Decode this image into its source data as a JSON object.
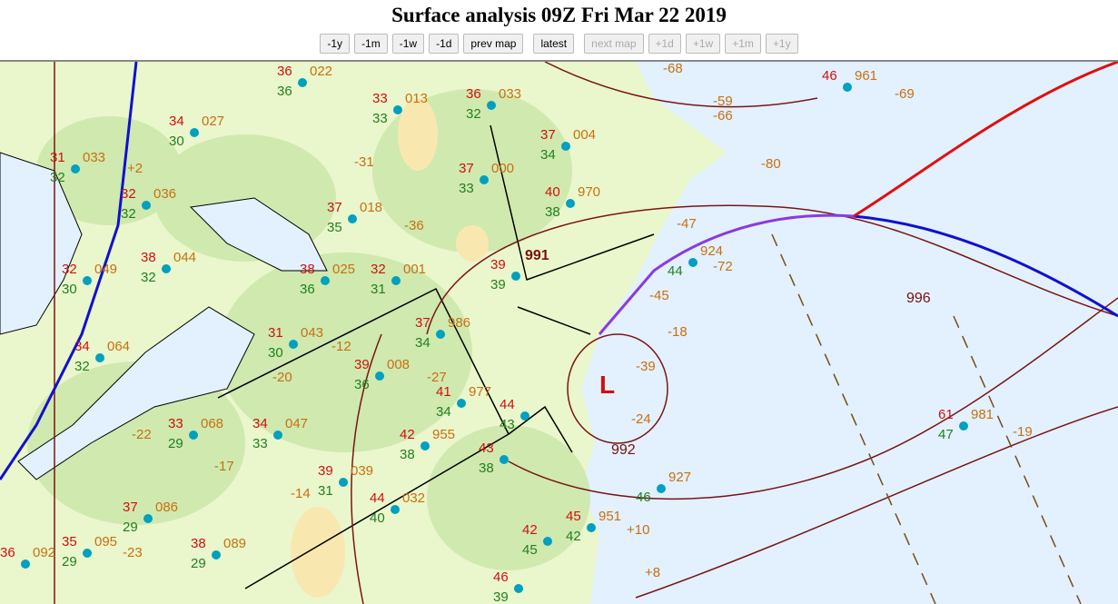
{
  "header": {
    "title": "Surface analysis 09Z Fri Mar 22 2019"
  },
  "nav": {
    "buttons": [
      {
        "label": "-1y",
        "enabled": true
      },
      {
        "label": "-1m",
        "enabled": true
      },
      {
        "label": "-1w",
        "enabled": true
      },
      {
        "label": "-1d",
        "enabled": true
      },
      {
        "label": "prev map",
        "enabled": true
      },
      {
        "label": "latest",
        "enabled": true
      },
      {
        "label": "next map",
        "enabled": false
      },
      {
        "label": "+1d",
        "enabled": false
      },
      {
        "label": "+1w",
        "enabled": false
      },
      {
        "label": "+1m",
        "enabled": false
      },
      {
        "label": "+1y",
        "enabled": false
      }
    ]
  },
  "map": {
    "colors": {
      "ocean": "#e2f1fd",
      "land": "#eaf6cc",
      "land_moist": "#c9e6a8",
      "dry": "#f8e8b0",
      "cold_front": "#1010d0",
      "warm_front": "#e01010",
      "occluded_front": "#8a3ae0",
      "isobar": "#7a1414"
    },
    "low": {
      "symbol": "L",
      "pressure": "992"
    },
    "isobar_labels": [
      "996",
      "992",
      "991"
    ],
    "stations": [
      {
        "temp": "46",
        "pres": "961",
        "dew": ""
      },
      {
        "temp": "61",
        "pres": "981",
        "dew": "47"
      },
      {
        "temp": "33",
        "pres": "013",
        "dew": "33"
      },
      {
        "temp": "36",
        "pres": "022",
        "dew": "36"
      },
      {
        "temp": "34",
        "pres": "027",
        "dew": "30"
      },
      {
        "temp": "36",
        "pres": "033",
        "dew": "32"
      },
      {
        "temp": "37",
        "pres": "004",
        "dew": "34"
      },
      {
        "temp": "37",
        "pres": "000",
        "dew": "33"
      },
      {
        "temp": "31",
        "pres": "033",
        "dew": "32"
      },
      {
        "temp": "32",
        "pres": "036",
        "dew": "32"
      },
      {
        "temp": "37",
        "pres": "018",
        "dew": "35"
      },
      {
        "temp": "32",
        "pres": "001",
        "dew": "31"
      },
      {
        "temp": "38",
        "pres": "044",
        "dew": "32"
      },
      {
        "temp": "32",
        "pres": "049",
        "dew": "30"
      },
      {
        "temp": "38",
        "pres": "025",
        "dew": "36"
      },
      {
        "temp": "37",
        "pres": "986",
        "dew": "34"
      },
      {
        "temp": "31",
        "pres": "043",
        "dew": "30"
      },
      {
        "temp": "39",
        "pres": "008",
        "dew": "36"
      },
      {
        "temp": "34",
        "pres": "064",
        "dew": "32"
      },
      {
        "temp": "33",
        "pres": "068",
        "dew": "29"
      },
      {
        "temp": "34",
        "pres": "047",
        "dew": "33"
      },
      {
        "temp": "42",
        "pres": "955",
        "dew": "38"
      },
      {
        "temp": "39",
        "pres": "039",
        "dew": "31"
      },
      {
        "temp": "44",
        "pres": "032",
        "dew": "40"
      },
      {
        "temp": "37",
        "pres": "086",
        "dew": "29"
      },
      {
        "temp": "35",
        "pres": "095",
        "dew": "29"
      },
      {
        "temp": "38",
        "pres": "089",
        "dew": "29"
      },
      {
        "temp": "36",
        "pres": "092",
        "dew": ""
      },
      {
        "temp": "40",
        "pres": "970",
        "dew": "38"
      },
      {
        "temp": "39",
        "pres": "",
        "dew": "39"
      },
      {
        "temp": "41",
        "pres": "977",
        "dew": "34"
      },
      {
        "temp": "44",
        "pres": "",
        "dew": "43"
      },
      {
        "temp": "45",
        "pres": "951",
        "dew": "42"
      },
      {
        "temp": "",
        "pres": "927",
        "dew": "46"
      },
      {
        "temp": "42",
        "pres": "",
        "dew": "45"
      },
      {
        "temp": "",
        "pres": "924",
        "dew": "44"
      },
      {
        "temp": "43",
        "pres": "",
        "dew": "38"
      },
      {
        "temp": "46",
        "pres": "",
        "dew": "39"
      }
    ],
    "pressure_tendencies": [
      "-68",
      "-69",
      "-59",
      "-66",
      "-80",
      "-31",
      "-36",
      "-47",
      "-72",
      "-45",
      "-18",
      "-39",
      "-24",
      "-19",
      "-12",
      "-27",
      "-20",
      "-22",
      "-17",
      "-14",
      "-23",
      "+10",
      "+8",
      "+2"
    ]
  }
}
